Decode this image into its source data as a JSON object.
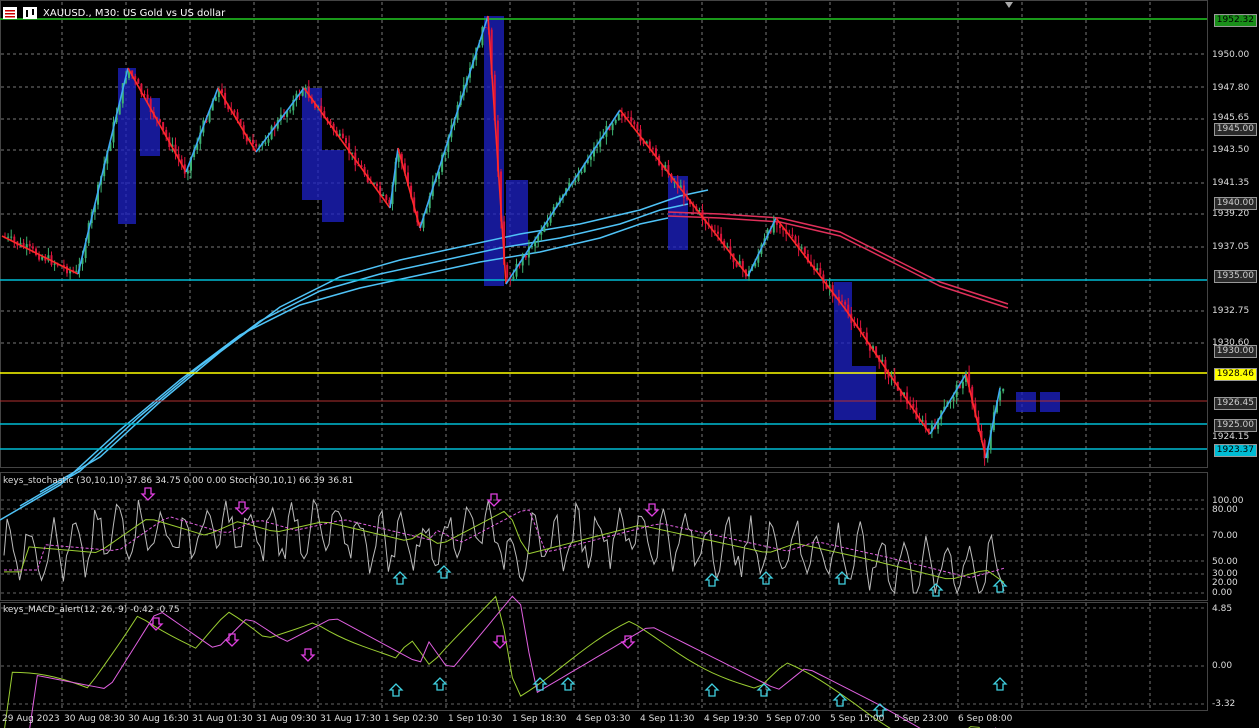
{
  "window": {
    "symbol_title": "XAUUSD., M30:  US Gold vs US dollar"
  },
  "main_scale_labels": [
    "1950.00",
    "1947.80",
    "1945.65",
    "1943.50",
    "1941.35",
    "1939.20",
    "1937.05",
    "1932.75",
    "1930.60",
    "1924.15"
  ],
  "level_labels": [
    {
      "text": "1952.32",
      "bg": "#1a8f1a",
      "fg": "#000000"
    },
    {
      "text": "1945.00",
      "bg": "#2a2a2a",
      "fg": "#cccccc"
    },
    {
      "text": "1940.00",
      "bg": "#2a2a2a",
      "fg": "#cccccc"
    },
    {
      "text": "1935.00",
      "bg": "#2a2a2a",
      "fg": "#cccccc"
    },
    {
      "text": "1930.00",
      "bg": "#2a2a2a",
      "fg": "#cccccc"
    },
    {
      "text": "1928.46",
      "bg": "#ffff00",
      "fg": "#000000"
    },
    {
      "text": "1926.45",
      "bg": "#2a2a2a",
      "fg": "#cccccc"
    },
    {
      "text": "1925.00",
      "bg": "#2a2a2a",
      "fg": "#cccccc"
    },
    {
      "text": "1923.37",
      "bg": "#00bcd4",
      "fg": "#000000"
    }
  ],
  "stoch": {
    "title": "keys_stochastic (30,10,10) 37.86 34.75 0.00 0.00 Stoch(30,10,1) 66.39 36.81",
    "scale_labels": [
      "100.00",
      "80.00",
      "70.00",
      "50.00",
      "30.00",
      "20.00",
      "0.00"
    ]
  },
  "macd": {
    "title": "keys_MACD_alert(12, 26, 9) -0.42 -0.75",
    "scale_labels": [
      "4.85",
      "0.00",
      "-3.32"
    ]
  },
  "time_labels": [
    "29 Aug 2023",
    "30 Aug 08:30",
    "30 Aug 16:30",
    "31 Aug 01:30",
    "31 Aug 09:30",
    "31 Aug 17:30",
    "1 Sep 02:30",
    "1 Sep 10:30",
    "1 Sep 18:30",
    "4 Sep 03:30",
    "4 Sep 11:30",
    "4 Sep 19:30",
    "5 Sep 07:00",
    "5 Sep 15:00",
    "5 Sep 23:00",
    "6 Sep 08:00"
  ],
  "colors": {
    "background": "#000000",
    "bull": "#3cb371",
    "bear": "#dc143c",
    "zigzag_up": "#3fa9f5",
    "zigzag_down": "#ff2a2a",
    "ma_blue": "#4fc3f7",
    "ma_red": "#e0305a",
    "supply_demand": "#1e22c8",
    "level_green": "#22cc22",
    "level_yellow": "#ffff00",
    "level_cyan": "#00bcd4",
    "level_red": "#b03030",
    "arrow_up": "#40d0e0",
    "arrow_down": "#e040e0"
  }
}
